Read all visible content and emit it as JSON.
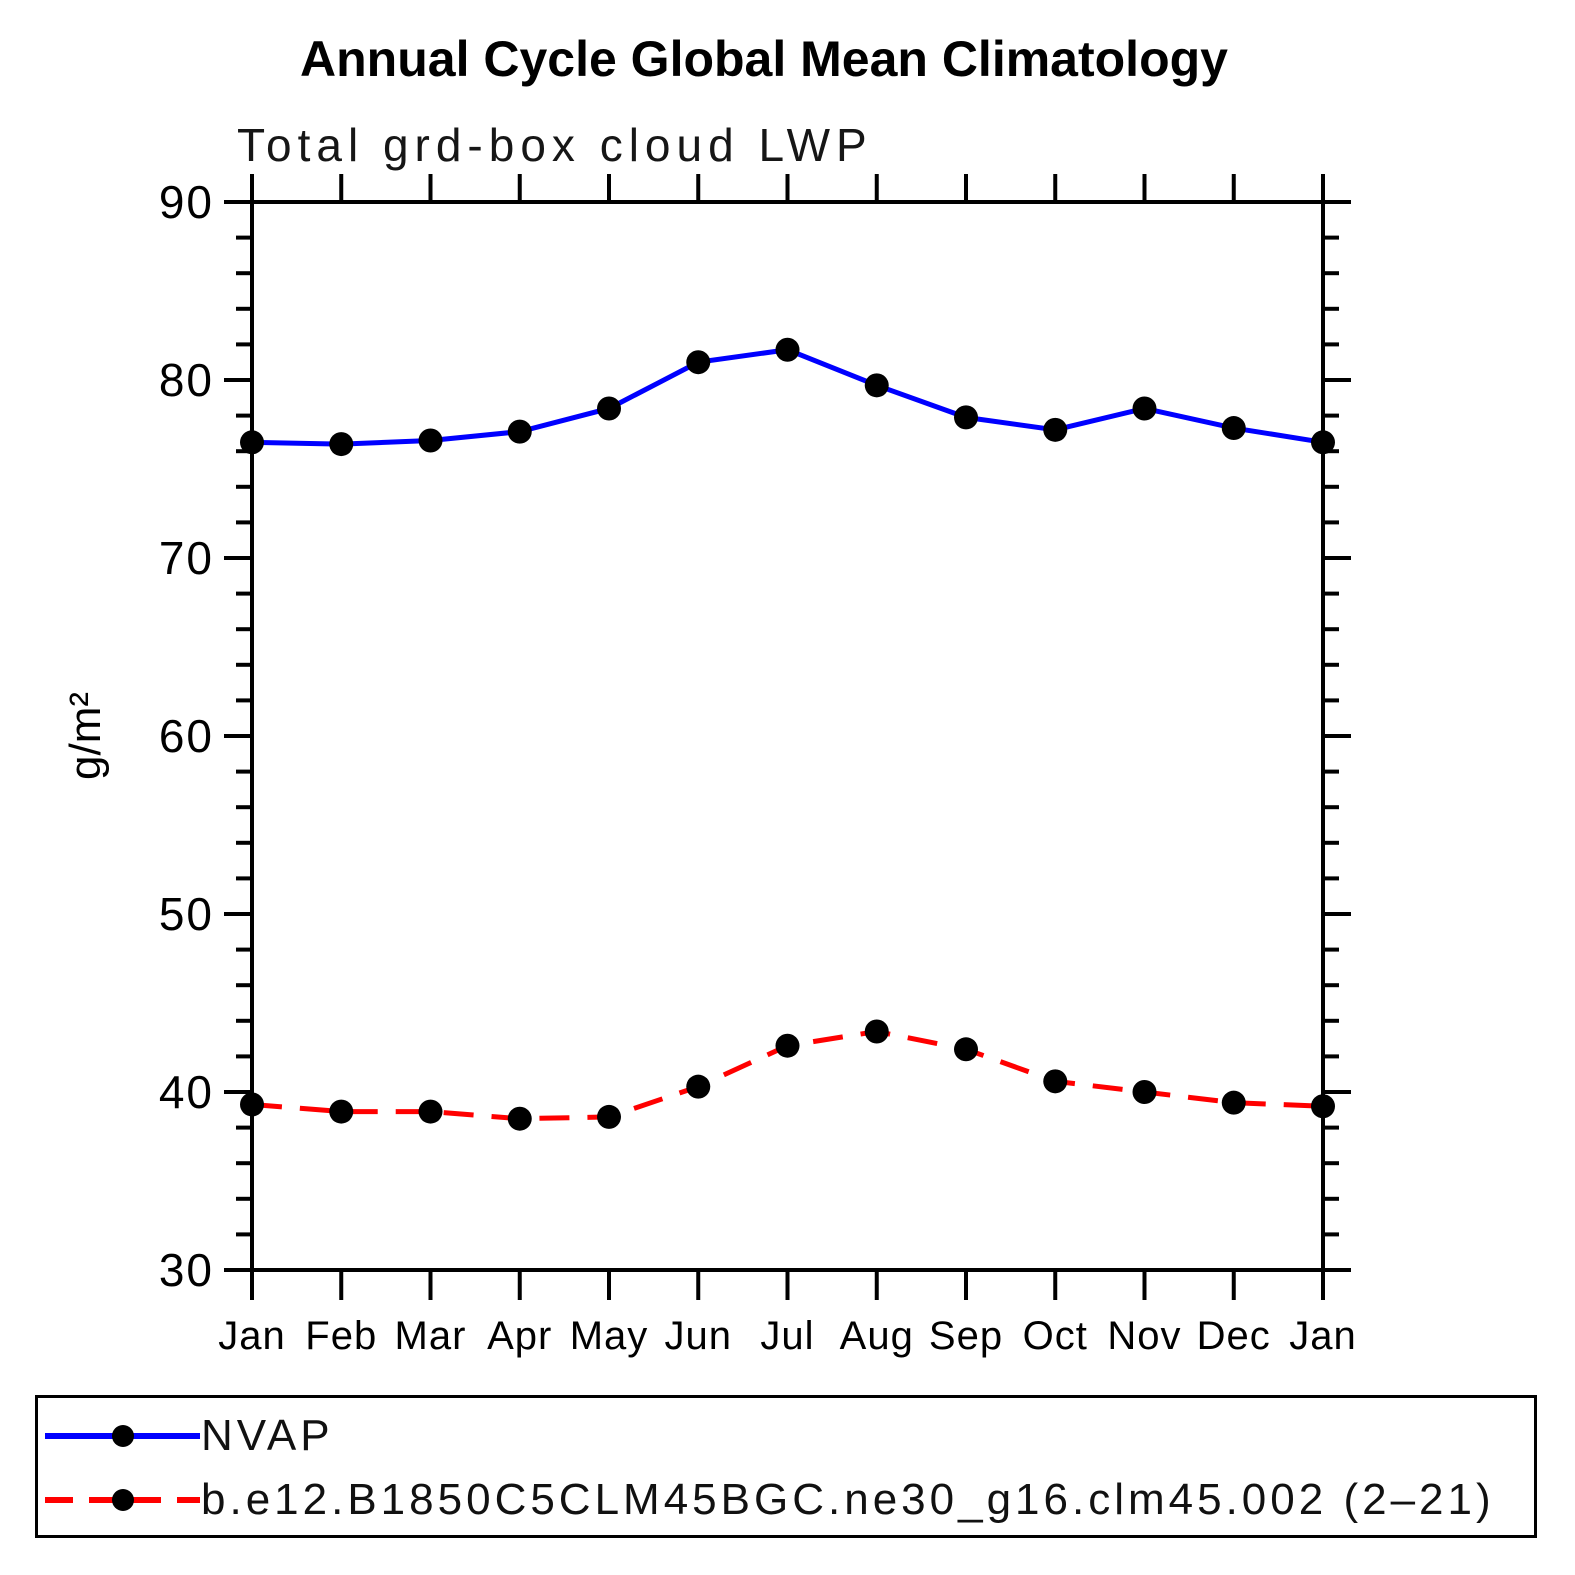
{
  "chart_data": {
    "type": "line",
    "title": "Annual Cycle Global Mean Climatology",
    "subtitle": "Total grd-box cloud LWP",
    "ylabel": "g/m²",
    "xlabel": "",
    "categories": [
      "Jan",
      "Feb",
      "Mar",
      "Apr",
      "May",
      "Jun",
      "Jul",
      "Aug",
      "Sep",
      "Oct",
      "Nov",
      "Dec",
      "Jan"
    ],
    "ylim": [
      30,
      90
    ],
    "ytick_major": 10,
    "ytick_minor": 2,
    "ytick_labels": [
      "30",
      "40",
      "50",
      "60",
      "70",
      "80",
      "90"
    ],
    "grid": false,
    "legend_position": "bottom",
    "frame_color": "#000000",
    "marker_color": "#000000",
    "series": [
      {
        "name": "NVAP",
        "color": "#0000ff",
        "line_style": "solid",
        "marker": "circle",
        "values": [
          76.5,
          76.4,
          76.6,
          77.1,
          78.4,
          81.0,
          81.7,
          79.7,
          77.9,
          77.2,
          78.4,
          77.3,
          76.5
        ]
      },
      {
        "name": "b.e12.B1850C5CLM45BGC.ne30_g16.clm45.002 (2–21)",
        "color": "#ff0000",
        "line_style": "dashed",
        "marker": "circle",
        "values": [
          39.3,
          38.9,
          38.9,
          38.5,
          38.6,
          40.3,
          42.6,
          43.4,
          42.4,
          40.6,
          40.0,
          39.4,
          39.2
        ]
      }
    ]
  }
}
